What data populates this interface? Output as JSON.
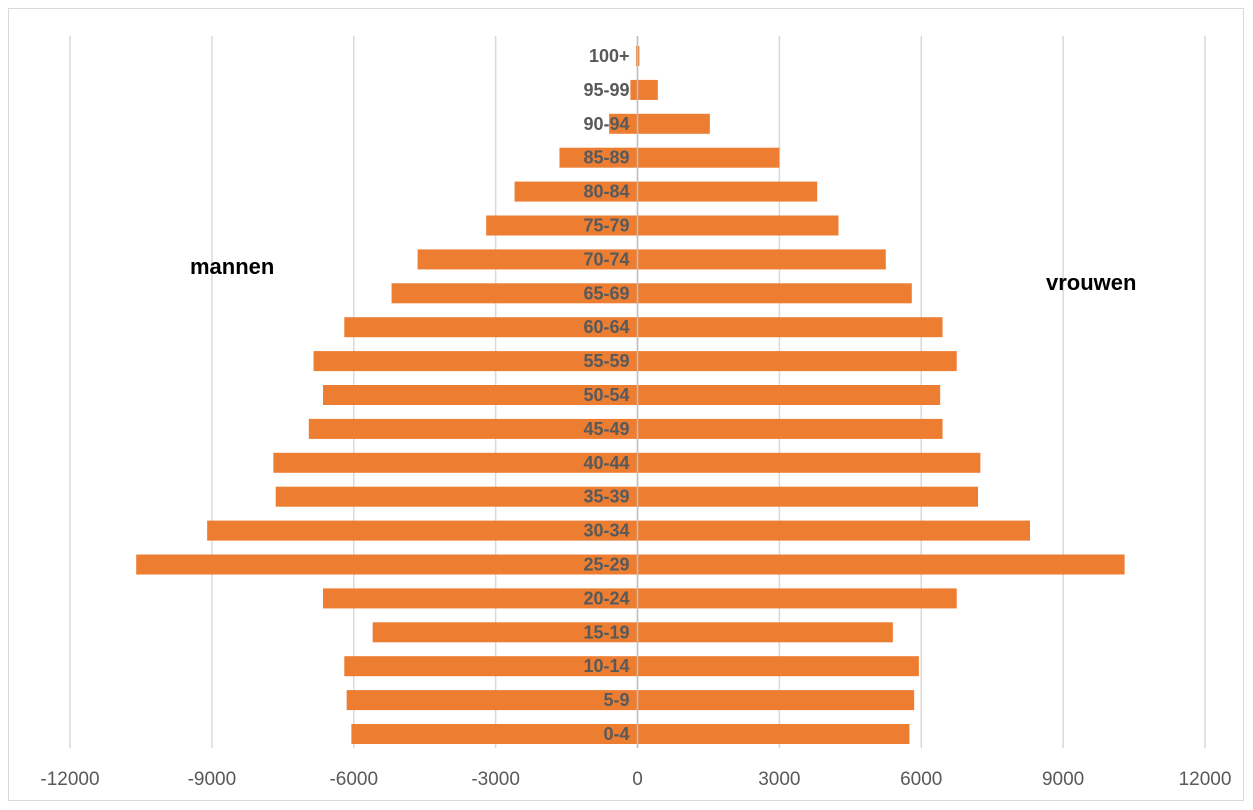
{
  "chart_data": {
    "type": "bar",
    "orientation": "horizontal",
    "categories": [
      "0-4",
      "5-9",
      "10-14",
      "15-19",
      "20-24",
      "25-29",
      "30-34",
      "35-39",
      "40-44",
      "45-49",
      "50-54",
      "55-59",
      "60-64",
      "65-69",
      "70-74",
      "75-79",
      "80-84",
      "85-89",
      "90-94",
      "95-99",
      "100+"
    ],
    "series": [
      {
        "values": [
          -6050,
          -6150,
          -6200,
          -5600,
          -6650,
          -10600,
          -9100,
          -7650,
          -7700,
          -6950,
          -6650,
          -6850,
          -6200,
          -5200,
          -4650,
          -3200,
          -2600,
          -1650,
          -600,
          -150,
          -30
        ]
      },
      {
        "values": [
          5750,
          5850,
          5950,
          5400,
          6750,
          10300,
          8300,
          7200,
          7250,
          6450,
          6400,
          6750,
          6450,
          5800,
          5250,
          4250,
          3800,
          3000,
          1530,
          430,
          40
        ]
      }
    ],
    "xticks": [
      -12000,
      -9000,
      -6000,
      -3000,
      0,
      3000,
      6000,
      9000,
      12000
    ],
    "xlim": [
      -12000,
      12000
    ],
    "grid": true,
    "bar_color": "#ED7D31",
    "annotations": {
      "left": "mannen",
      "right": "vrouwen"
    }
  }
}
